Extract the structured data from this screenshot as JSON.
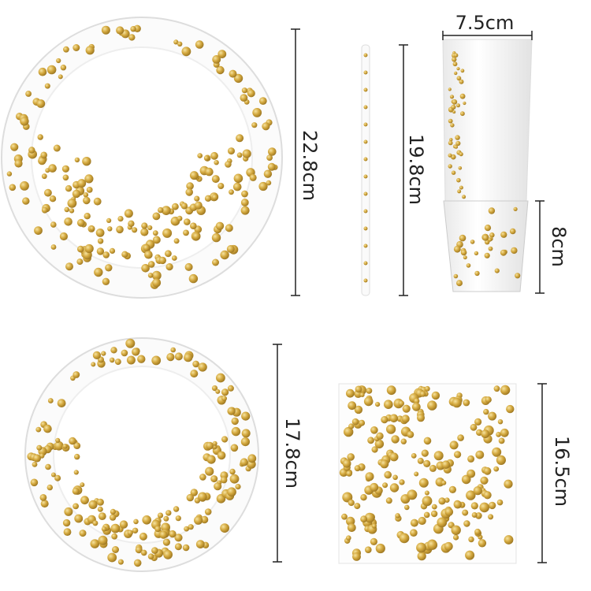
{
  "items": [
    {
      "name": "large-plate",
      "label": "22.8cm"
    },
    {
      "name": "straw",
      "label": "19.8cm"
    },
    {
      "name": "cup-width",
      "label": "7.5cm"
    },
    {
      "name": "cup-height",
      "label": "8cm"
    },
    {
      "name": "small-plate",
      "label": "17.8cm"
    },
    {
      "name": "napkin",
      "label": "16.5cm"
    }
  ]
}
